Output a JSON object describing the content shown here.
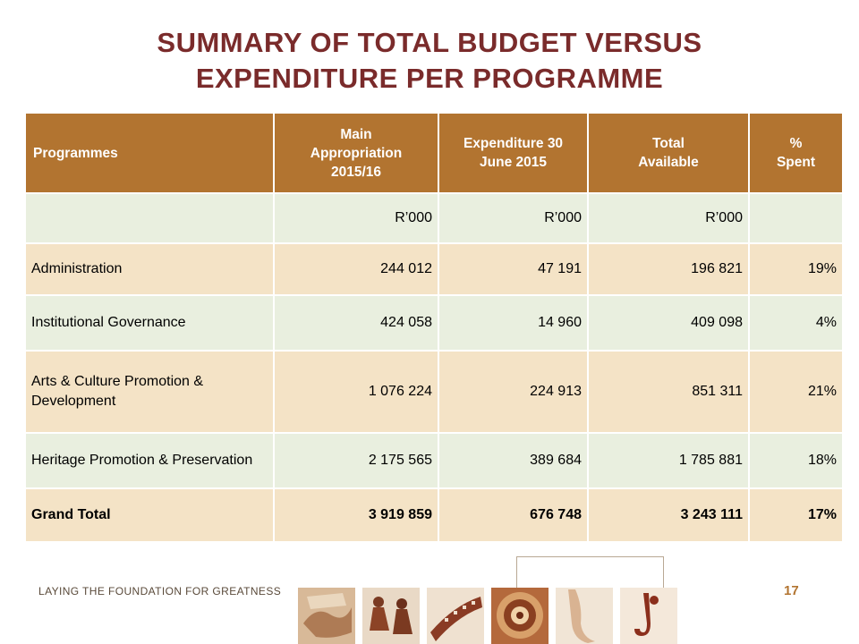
{
  "title": {
    "line1": "SUMMARY OF TOTAL BUDGET VERSUS",
    "line2": "EXPENDITURE PER PROGRAMME"
  },
  "table": {
    "headers": {
      "programmes": "Programmes",
      "main_appropriation": "Main Appropriation 2015/16",
      "expenditure": "Expenditure 30 June 2015",
      "total_available": "Total Available",
      "pct_spent": "% Spent"
    },
    "units": [
      "",
      "R’000",
      "R’000",
      "R’000",
      ""
    ],
    "rows": [
      {
        "programme": "Administration",
        "main": "244 012",
        "expenditure": "47 191",
        "available": "196 821",
        "spent": "19%"
      },
      {
        "programme": "Institutional Governance",
        "main": "424 058",
        "expenditure": "14 960",
        "available": "409 098",
        "spent": "4%"
      },
      {
        "programme": "Arts & Culture Promotion & Development",
        "main": "1 076 224",
        "expenditure": "224 913",
        "available": "851 311",
        "spent": "21%"
      },
      {
        "programme": "Heritage Promotion & Preservation",
        "main": "2 175 565",
        "expenditure": "389 684",
        "available": "1 785 881",
        "spent": "18%"
      }
    ],
    "total": {
      "programme": "Grand Total",
      "main": "3 919 859",
      "expenditure": "676 748",
      "available": "3 243 111",
      "spent": "17%"
    }
  },
  "footer": {
    "tagline": "LAYING THE FOUNDATION FOR GREATNESS",
    "page_number": "17"
  },
  "colors": {
    "title": "#7a2b2b",
    "header_bg": "#b27430",
    "row_tan": "#f4e3c6",
    "row_green": "#e9efdf"
  },
  "photos": [
    "hands-photo",
    "dancers-photo",
    "film-reel-photo",
    "beadwork-photo",
    "ballet-shoe-photo",
    "saxophone-photo"
  ]
}
